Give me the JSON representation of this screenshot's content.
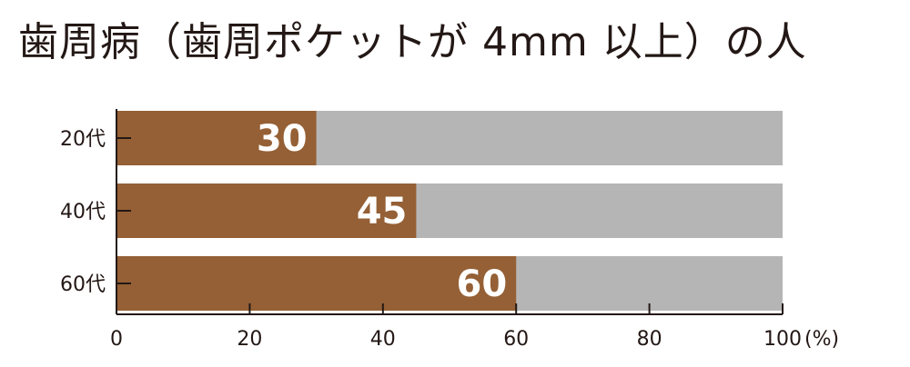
{
  "chart_data": {
    "type": "bar",
    "orientation": "horizontal",
    "stacked_with_remainder": true,
    "title": "歯周病（歯周ポケットが 4mm 以上）の人",
    "categories": [
      "20代",
      "40代",
      "60代"
    ],
    "values": [
      30,
      45,
      60
    ],
    "xlim": [
      0,
      100
    ],
    "xticks": [
      "0",
      "20",
      "40",
      "60",
      "80",
      "100"
    ],
    "xunit": "(%)",
    "grid": false,
    "colors": {
      "bar": "#956035",
      "remainder": "#b5b5b5",
      "axis": "#231815",
      "label": "#ffffff"
    }
  }
}
